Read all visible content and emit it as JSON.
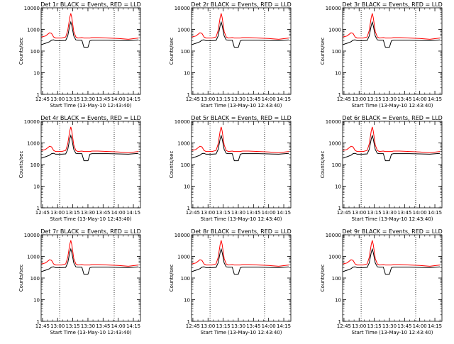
{
  "colors": {
    "events": "#000000",
    "lld": "#ff0000",
    "axes": "#000000",
    "background": "#ffffff"
  },
  "shared": {
    "ylabel": "Counts/sec",
    "xlabel": "Start Time (13-May-10 12:43:40)",
    "x_tick_labels": [
      "12:45",
      "13:00",
      "13:15",
      "13:30",
      "13:45",
      "14:00",
      "14:15"
    ],
    "y_tick_labels": [
      "1",
      "10",
      "100",
      "1000",
      "10000"
    ],
    "y_scale": "log",
    "ylim": [
      1,
      10000
    ],
    "xlim": [
      "12:43:40",
      "14:22:00"
    ],
    "dotted_vertical_lines": [
      "13:02",
      "13:56"
    ]
  },
  "panels": [
    {
      "title": "Det 1r BLACK = Events, RED = LLD"
    },
    {
      "title": "Det 2r BLACK = Events, RED = LLD"
    },
    {
      "title": "Det 3r BLACK = Events, RED = LLD"
    },
    {
      "title": "Det 4r BLACK = Events, RED = LLD"
    },
    {
      "title": "Det 5r BLACK = Events, RED = LLD"
    },
    {
      "title": "Det 6r BLACK = Events, RED = LLD"
    },
    {
      "title": "Det 7r BLACK = Events, RED = LLD"
    },
    {
      "title": "Det 8r BLACK = Events, RED = LLD"
    },
    {
      "title": "Det 9r BLACK = Events, RED = LLD"
    }
  ],
  "chart_data": {
    "type": "line",
    "y_scale": "log",
    "ylim": [
      1,
      10000
    ],
    "x": [
      "12:44",
      "12:48",
      "12:52",
      "12:54",
      "12:56",
      "12:58",
      "13:00",
      "13:04",
      "13:08",
      "13:10",
      "13:12",
      "13:13",
      "13:14",
      "13:16",
      "13:18",
      "13:20",
      "13:24",
      "13:26",
      "13:28",
      "13:30",
      "13:32",
      "13:34",
      "13:40",
      "13:50",
      "14:00",
      "14:10",
      "14:20"
    ],
    "series": [
      {
        "name": "Events",
        "values": [
          200,
          230,
          270,
          320,
          330,
          300,
          300,
          300,
          310,
          500,
          1500,
          2200,
          1500,
          500,
          330,
          320,
          320,
          150,
          150,
          150,
          300,
          320,
          320,
          320,
          310,
          300,
          330
        ]
      },
      {
        "name": "LLD",
        "values": [
          450,
          500,
          700,
          650,
          450,
          400,
          400,
          400,
          450,
          900,
          3500,
          5500,
          3500,
          800,
          450,
          400,
          420,
          400,
          400,
          400,
          400,
          420,
          420,
          400,
          380,
          350,
          400
        ]
      }
    ]
  }
}
